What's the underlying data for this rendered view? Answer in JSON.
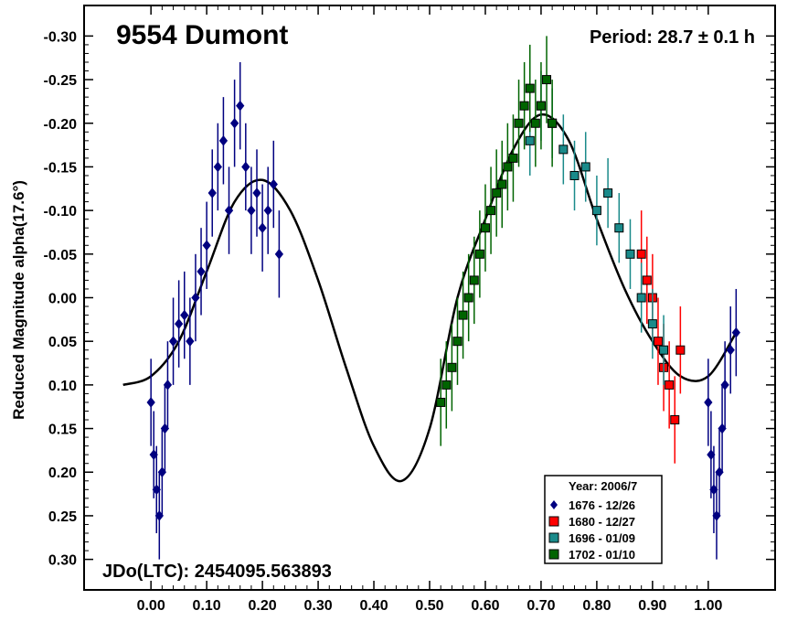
{
  "chart_data": {
    "type": "scatter",
    "title": "9554 Dumont",
    "period_label": "Period: 28.7 ± 0.1 h",
    "epoch_label": "JDo(LTC): 2454095.563893",
    "xlabel": "",
    "ylabel": "Reduced Magnitude alpha(17.6°)",
    "xlim": [
      -0.12,
      1.12
    ],
    "ylim": [
      -0.335,
      0.335
    ],
    "y_inverted": true,
    "x_ticks": [
      "0.00",
      "0.10",
      "0.20",
      "0.30",
      "0.40",
      "0.50",
      "0.60",
      "0.70",
      "0.80",
      "0.90",
      "1.00"
    ],
    "y_ticks": [
      "-0.30",
      "-0.25",
      "-0.20",
      "-0.15",
      "-0.10",
      "-0.05",
      "0.00",
      "0.05",
      "0.10",
      "0.15",
      "0.20",
      "0.25",
      "0.30"
    ],
    "legend": {
      "placement": "bottom-right",
      "title": "Year: 2006/7"
    },
    "fit_curve": {
      "x": [
        -0.05,
        0.0,
        0.05,
        0.1,
        0.15,
        0.2,
        0.25,
        0.3,
        0.35,
        0.4,
        0.45,
        0.5,
        0.55,
        0.6,
        0.65,
        0.7,
        0.75,
        0.8,
        0.85,
        0.9,
        0.95,
        1.0,
        1.05
      ],
      "y": [
        0.1,
        0.09,
        0.05,
        -0.03,
        -0.11,
        -0.135,
        -0.1,
        -0.02,
        0.08,
        0.17,
        0.21,
        0.15,
        0.0,
        -0.09,
        -0.17,
        -0.21,
        -0.18,
        -0.09,
        -0.01,
        0.05,
        0.09,
        0.09,
        0.04
      ]
    },
    "series": [
      {
        "name": "1676 - 12/26",
        "marker": "diamond",
        "color": "#000080",
        "x": [
          0.0,
          0.005,
          0.01,
          0.015,
          0.02,
          0.025,
          0.03,
          0.04,
          0.05,
          0.06,
          0.07,
          0.08,
          0.09,
          0.1,
          0.11,
          0.12,
          0.13,
          0.14,
          0.15,
          0.16,
          0.17,
          0.18,
          0.19,
          0.2,
          0.21,
          0.22,
          0.23,
          1.0,
          1.005,
          1.01,
          1.015,
          1.02,
          1.025,
          1.03,
          1.04,
          1.05
        ],
        "y": [
          0.12,
          0.18,
          0.22,
          0.25,
          0.2,
          0.15,
          0.1,
          0.05,
          0.03,
          0.02,
          0.05,
          0.0,
          -0.03,
          -0.06,
          -0.12,
          -0.15,
          -0.18,
          -0.1,
          -0.2,
          -0.22,
          -0.15,
          -0.1,
          -0.12,
          -0.08,
          -0.1,
          -0.13,
          -0.05,
          0.12,
          0.18,
          0.22,
          0.25,
          0.2,
          0.15,
          0.1,
          0.06,
          0.04
        ],
        "err": [
          0.05,
          0.05,
          0.05,
          0.05,
          0.05,
          0.05,
          0.05,
          0.05,
          0.05,
          0.05,
          0.05,
          0.05,
          0.05,
          0.05,
          0.05,
          0.05,
          0.05,
          0.05,
          0.05,
          0.05,
          0.05,
          0.05,
          0.05,
          0.05,
          0.05,
          0.05,
          0.05,
          0.05,
          0.05,
          0.05,
          0.05,
          0.05,
          0.05,
          0.05,
          0.05,
          0.05
        ]
      },
      {
        "name": "1680 - 12/27",
        "marker": "square",
        "color": "#ff0000",
        "x": [
          0.88,
          0.89,
          0.9,
          0.91,
          0.92,
          0.93,
          0.94,
          0.95
        ],
        "y": [
          -0.05,
          -0.02,
          0.0,
          0.05,
          0.08,
          0.1,
          0.14,
          0.06
        ],
        "err": [
          0.05,
          0.05,
          0.05,
          0.05,
          0.05,
          0.05,
          0.05,
          0.05
        ]
      },
      {
        "name": "1696 - 01/09",
        "marker": "square",
        "color": "#1a8a8a",
        "x": [
          0.68,
          0.7,
          0.72,
          0.74,
          0.76,
          0.78,
          0.8,
          0.82,
          0.84,
          0.86,
          0.88,
          0.9,
          0.92
        ],
        "y": [
          -0.18,
          -0.22,
          -0.2,
          -0.17,
          -0.14,
          -0.15,
          -0.1,
          -0.12,
          -0.08,
          -0.05,
          0.0,
          0.03,
          0.06
        ],
        "err": [
          0.04,
          0.04,
          0.04,
          0.04,
          0.04,
          0.04,
          0.04,
          0.04,
          0.04,
          0.04,
          0.04,
          0.04,
          0.04
        ]
      },
      {
        "name": "1702 - 01/10",
        "marker": "square",
        "color": "#006400",
        "x": [
          0.52,
          0.53,
          0.54,
          0.55,
          0.56,
          0.57,
          0.58,
          0.59,
          0.6,
          0.61,
          0.62,
          0.63,
          0.64,
          0.65,
          0.66,
          0.67,
          0.68,
          0.69,
          0.7,
          0.71,
          0.72
        ],
        "y": [
          0.12,
          0.1,
          0.08,
          0.05,
          0.02,
          0.0,
          -0.02,
          -0.05,
          -0.08,
          -0.1,
          -0.12,
          -0.13,
          -0.15,
          -0.16,
          -0.2,
          -0.22,
          -0.24,
          -0.2,
          -0.22,
          -0.25,
          -0.2
        ],
        "err": [
          0.05,
          0.05,
          0.05,
          0.05,
          0.05,
          0.05,
          0.05,
          0.05,
          0.05,
          0.05,
          0.05,
          0.05,
          0.05,
          0.05,
          0.05,
          0.05,
          0.05,
          0.05,
          0.05,
          0.05,
          0.05
        ]
      }
    ]
  }
}
